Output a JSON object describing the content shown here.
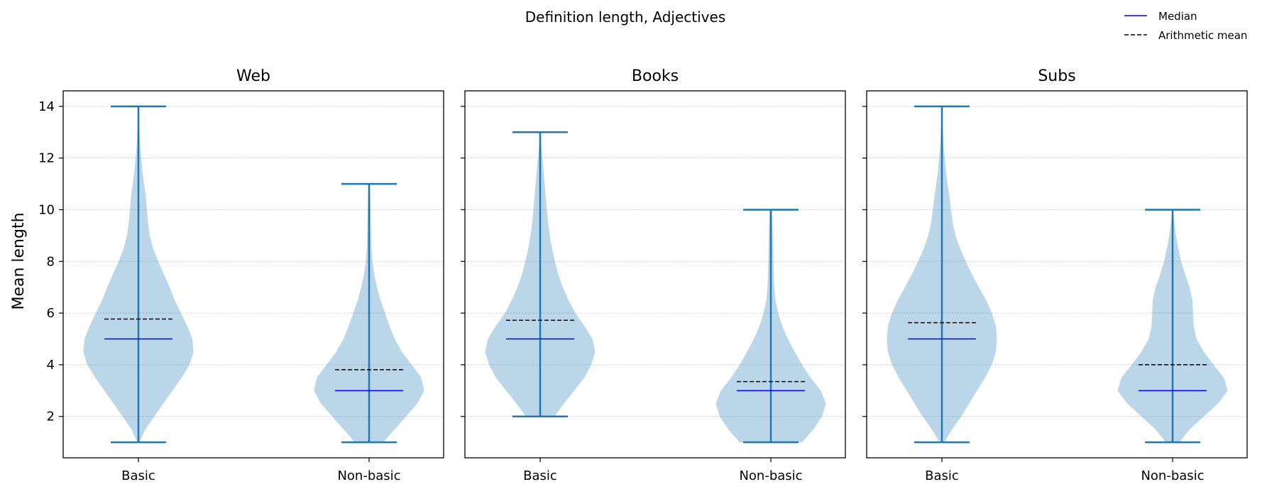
{
  "figure": {
    "suptitle": "Definition length, Adjectives",
    "ylabel": "Mean length"
  },
  "legend": {
    "placement": "top-right",
    "items": [
      {
        "label": "Median",
        "style": "solid",
        "color": "#0000ff"
      },
      {
        "label": "Arithmetic mean",
        "style": "dashed",
        "color": "#000000"
      }
    ]
  },
  "colors": {
    "violin_fill": "#1f77b4",
    "violin_line": "#1f77b4",
    "median": "#0000ff",
    "mean": "#000000",
    "grid": "#cccccc"
  },
  "chart_data": [
    {
      "type": "violin",
      "title": "Web",
      "categories": [
        "Basic",
        "Non-basic"
      ],
      "ylim": [
        0.4,
        14.6
      ],
      "yticks": [
        2,
        4,
        6,
        8,
        10,
        12,
        14
      ],
      "grid": "y-dotted",
      "violins": [
        {
          "category": "Basic",
          "min": 1,
          "max": 14,
          "median": 5,
          "mean": 5.77,
          "profile": [
            [
              1,
              0.02
            ],
            [
              1.5,
              0.12
            ],
            [
              2,
              0.28
            ],
            [
              2.5,
              0.44
            ],
            [
              3,
              0.6
            ],
            [
              3.5,
              0.76
            ],
            [
              4,
              0.9
            ],
            [
              4.5,
              0.97
            ],
            [
              5,
              0.95
            ],
            [
              5.5,
              0.86
            ],
            [
              6,
              0.75
            ],
            [
              6.5,
              0.64
            ],
            [
              7,
              0.55
            ],
            [
              7.5,
              0.45
            ],
            [
              8,
              0.35
            ],
            [
              8.5,
              0.26
            ],
            [
              9,
              0.2
            ],
            [
              9.5,
              0.17
            ],
            [
              10,
              0.15
            ],
            [
              10.5,
              0.13
            ],
            [
              11,
              0.1
            ],
            [
              11.5,
              0.07
            ],
            [
              12,
              0.05
            ],
            [
              12.5,
              0.03
            ],
            [
              13,
              0.02
            ],
            [
              13.5,
              0.01
            ],
            [
              14,
              0.005
            ]
          ]
        },
        {
          "category": "Non-basic",
          "min": 1,
          "max": 11,
          "median": 3,
          "mean": 3.81,
          "profile": [
            [
              1,
              0.25
            ],
            [
              1.5,
              0.45
            ],
            [
              2,
              0.65
            ],
            [
              2.5,
              0.85
            ],
            [
              3,
              0.97
            ],
            [
              3.5,
              0.92
            ],
            [
              4,
              0.75
            ],
            [
              4.5,
              0.58
            ],
            [
              5,
              0.45
            ],
            [
              5.5,
              0.36
            ],
            [
              6,
              0.28
            ],
            [
              6.5,
              0.2
            ],
            [
              7,
              0.14
            ],
            [
              7.5,
              0.09
            ],
            [
              8,
              0.06
            ],
            [
              8.5,
              0.04
            ],
            [
              9,
              0.035
            ],
            [
              9.5,
              0.03
            ],
            [
              10,
              0.025
            ],
            [
              10.5,
              0.02
            ],
            [
              11,
              0.01
            ]
          ]
        }
      ]
    },
    {
      "type": "violin",
      "title": "Books",
      "categories": [
        "Basic",
        "Non-basic"
      ],
      "ylim": [
        0.4,
        14.6
      ],
      "yticks": [
        2,
        4,
        6,
        8,
        10,
        12,
        14
      ],
      "grid": "y-dotted",
      "violins": [
        {
          "category": "Basic",
          "min": 2,
          "max": 13,
          "median": 5,
          "mean": 5.72,
          "profile": [
            [
              2,
              0.25
            ],
            [
              2.5,
              0.42
            ],
            [
              3,
              0.6
            ],
            [
              3.5,
              0.78
            ],
            [
              4,
              0.9
            ],
            [
              4.5,
              0.97
            ],
            [
              5,
              0.92
            ],
            [
              5.5,
              0.78
            ],
            [
              6,
              0.62
            ],
            [
              6.5,
              0.5
            ],
            [
              7,
              0.4
            ],
            [
              7.5,
              0.32
            ],
            [
              8,
              0.26
            ],
            [
              8.5,
              0.21
            ],
            [
              9,
              0.17
            ],
            [
              9.5,
              0.14
            ],
            [
              10,
              0.12
            ],
            [
              10.5,
              0.1
            ],
            [
              11,
              0.08
            ],
            [
              11.5,
              0.06
            ],
            [
              12,
              0.04
            ],
            [
              12.5,
              0.02
            ],
            [
              13,
              0.01
            ]
          ]
        },
        {
          "category": "Non-basic",
          "min": 1,
          "max": 10,
          "median": 3,
          "mean": 3.35,
          "profile": [
            [
              1,
              0.55
            ],
            [
              1.5,
              0.75
            ],
            [
              2,
              0.9
            ],
            [
              2.5,
              0.97
            ],
            [
              3,
              0.88
            ],
            [
              3.5,
              0.7
            ],
            [
              4,
              0.55
            ],
            [
              4.5,
              0.42
            ],
            [
              5,
              0.3
            ],
            [
              5.5,
              0.2
            ],
            [
              6,
              0.13
            ],
            [
              6.5,
              0.08
            ],
            [
              7,
              0.06
            ],
            [
              7.5,
              0.05
            ],
            [
              8,
              0.045
            ],
            [
              8.5,
              0.04
            ],
            [
              9,
              0.035
            ],
            [
              9.5,
              0.03
            ],
            [
              10,
              0.02
            ]
          ]
        }
      ]
    },
    {
      "type": "violin",
      "title": "Subs",
      "categories": [
        "Basic",
        "Non-basic"
      ],
      "ylim": [
        0.4,
        14.6
      ],
      "yticks": [
        2,
        4,
        6,
        8,
        10,
        12,
        14
      ],
      "grid": "y-dotted",
      "violins": [
        {
          "category": "Basic",
          "min": 1,
          "max": 14,
          "median": 5,
          "mean": 5.63,
          "profile": [
            [
              1,
              0.04
            ],
            [
              1.5,
              0.18
            ],
            [
              2,
              0.34
            ],
            [
              2.5,
              0.48
            ],
            [
              3,
              0.62
            ],
            [
              3.5,
              0.76
            ],
            [
              4,
              0.88
            ],
            [
              4.5,
              0.95
            ],
            [
              5,
              0.97
            ],
            [
              5.5,
              0.95
            ],
            [
              6,
              0.88
            ],
            [
              6.5,
              0.78
            ],
            [
              7,
              0.65
            ],
            [
              7.5,
              0.53
            ],
            [
              8,
              0.42
            ],
            [
              8.5,
              0.32
            ],
            [
              9,
              0.24
            ],
            [
              9.5,
              0.19
            ],
            [
              10,
              0.16
            ],
            [
              10.5,
              0.13
            ],
            [
              11,
              0.1
            ],
            [
              11.5,
              0.07
            ],
            [
              12,
              0.05
            ],
            [
              12.5,
              0.03
            ],
            [
              13,
              0.02
            ],
            [
              13.5,
              0.01
            ],
            [
              14,
              0.005
            ]
          ]
        },
        {
          "category": "Non-basic",
          "min": 1,
          "max": 10,
          "median": 3,
          "mean": 4.0,
          "profile": [
            [
              1,
              0.12
            ],
            [
              1.5,
              0.3
            ],
            [
              2,
              0.55
            ],
            [
              2.5,
              0.8
            ],
            [
              3,
              0.97
            ],
            [
              3.5,
              0.9
            ],
            [
              4,
              0.72
            ],
            [
              4.5,
              0.55
            ],
            [
              5,
              0.42
            ],
            [
              5.5,
              0.37
            ],
            [
              6,
              0.36
            ],
            [
              6.5,
              0.35
            ],
            [
              7,
              0.3
            ],
            [
              7.5,
              0.22
            ],
            [
              8,
              0.15
            ],
            [
              8.5,
              0.1
            ],
            [
              9,
              0.06
            ],
            [
              9.5,
              0.03
            ],
            [
              10,
              0.01
            ]
          ]
        }
      ]
    }
  ]
}
